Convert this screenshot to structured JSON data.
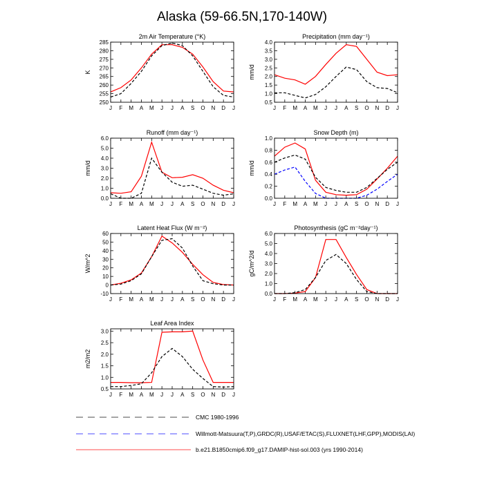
{
  "main_title": "Alaska (59-66.5N,170-140W)",
  "months": [
    "J",
    "F",
    "M",
    "A",
    "M",
    "J",
    "J",
    "A",
    "S",
    "O",
    "N",
    "D",
    "J"
  ],
  "legend": [
    {
      "label": "CMC 1980-1996",
      "color": "#000000",
      "dash": "dashed"
    },
    {
      "label": "Willmott-Matsuura(T,P),GRDC(R),USAF/ETAC(S),FLUXNET(LHF,GPP),MODIS(LAI)",
      "color": "#0000ff",
      "dash": "dashed"
    },
    {
      "label": "b.e21.B1850cmip6.f09_g17.DAMIP-hist-sol.003 (yrs 1990-2014)",
      "color": "#ff0000",
      "dash": "solid"
    }
  ],
  "chart_data": [
    {
      "type": "line",
      "title": "2m Air Temperature (°K)",
      "ylabel": "K",
      "ylim": [
        250,
        285
      ],
      "yticks": [
        "250",
        "255",
        "260",
        "265",
        "270",
        "275",
        "280",
        "285"
      ],
      "x": [
        "J",
        "F",
        "M",
        "A",
        "M",
        "J",
        "J",
        "A",
        "S",
        "O",
        "N",
        "D",
        "J"
      ],
      "series": [
        {
          "color": "#ff0000",
          "style": "solid",
          "values": [
            256,
            258.5,
            263,
            270,
            278,
            283.5,
            283.5,
            282,
            278,
            270.5,
            262,
            256.5,
            256
          ]
        },
        {
          "color": "#000000",
          "style": "dashed",
          "values": [
            253,
            255,
            261,
            268,
            277,
            283,
            284.5,
            283,
            277,
            268,
            259,
            254,
            253
          ]
        }
      ]
    },
    {
      "type": "line",
      "title": "Precipitation (mm day⁻¹)",
      "ylabel": "mm/d",
      "ylim": [
        0.5,
        4.0
      ],
      "yticks": [
        "0.5",
        "1.0",
        "1.5",
        "2.0",
        "2.5",
        "3.0",
        "3.5",
        "4.0"
      ],
      "x": [
        "J",
        "F",
        "M",
        "A",
        "M",
        "J",
        "J",
        "A",
        "S",
        "O",
        "N",
        "D",
        "J"
      ],
      "series": [
        {
          "color": "#ff0000",
          "style": "solid",
          "values": [
            2.1,
            1.9,
            1.8,
            1.55,
            2.0,
            2.7,
            3.35,
            3.85,
            3.75,
            3.0,
            2.25,
            2.05,
            2.1
          ]
        },
        {
          "color": "#000000",
          "style": "dashed",
          "values": [
            1.05,
            1.05,
            0.9,
            0.75,
            0.95,
            1.4,
            2.0,
            2.55,
            2.4,
            1.7,
            1.35,
            1.3,
            1.05
          ]
        }
      ]
    },
    {
      "type": "line",
      "title": "Runoff (mm day⁻¹)",
      "ylabel": "mm/d",
      "ylim": [
        0,
        6.0
      ],
      "yticks": [
        "0.0",
        "1.0",
        "2.0",
        "3.0",
        "4.0",
        "5.0",
        "6.0"
      ],
      "x": [
        "J",
        "F",
        "M",
        "A",
        "M",
        "J",
        "J",
        "A",
        "S",
        "O",
        "N",
        "D",
        "J"
      ],
      "series": [
        {
          "color": "#ff0000",
          "style": "solid",
          "values": [
            0.55,
            0.5,
            0.65,
            2.2,
            5.6,
            2.6,
            2.05,
            2.1,
            2.35,
            2.0,
            1.3,
            0.8,
            0.55
          ]
        },
        {
          "color": "#000000",
          "style": "dashed",
          "values": [
            0.45,
            0.0,
            0.0,
            0.5,
            4.0,
            2.6,
            1.6,
            1.2,
            1.3,
            0.9,
            0.5,
            0.3,
            0.45
          ]
        }
      ]
    },
    {
      "type": "line",
      "title": "Snow Depth (m)",
      "ylabel": "mm/d",
      "ylim": [
        0,
        1.0
      ],
      "yticks": [
        "0.0",
        "0.2",
        "0.4",
        "0.6",
        "0.8",
        "1.0"
      ],
      "x": [
        "J",
        "F",
        "M",
        "A",
        "M",
        "J",
        "J",
        "A",
        "S",
        "O",
        "N",
        "D",
        "J"
      ],
      "series": [
        {
          "color": "#ff0000",
          "style": "solid",
          "values": [
            0.7,
            0.85,
            0.92,
            0.82,
            0.3,
            0.1,
            0.06,
            0.05,
            0.06,
            0.15,
            0.32,
            0.5,
            0.7
          ]
        },
        {
          "color": "#000000",
          "style": "dashed",
          "values": [
            0.6,
            0.67,
            0.72,
            0.65,
            0.35,
            0.18,
            0.13,
            0.1,
            0.1,
            0.18,
            0.33,
            0.48,
            0.6
          ]
        },
        {
          "color": "#0000ff",
          "style": "dashed",
          "values": [
            0.4,
            0.47,
            0.52,
            0.28,
            0.08,
            0.0,
            0.0,
            0.0,
            0.0,
            0.05,
            0.15,
            0.28,
            0.4
          ]
        }
      ]
    },
    {
      "type": "line",
      "title": "Latent Heat Flux (W m⁻²)",
      "ylabel": "W/m^2",
      "ylim": [
        -10,
        60
      ],
      "yticks": [
        "-10",
        "0",
        "10",
        "20",
        "30",
        "40",
        "50",
        "60"
      ],
      "x": [
        "J",
        "F",
        "M",
        "A",
        "M",
        "J",
        "J",
        "A",
        "S",
        "O",
        "N",
        "D",
        "J"
      ],
      "series": [
        {
          "color": "#ff0000",
          "style": "solid",
          "values": [
            0,
            2,
            6,
            14,
            33,
            57,
            49,
            38,
            24,
            12,
            3,
            0.5,
            0
          ]
        },
        {
          "color": "#000000",
          "style": "dashed",
          "values": [
            0,
            1,
            5,
            13,
            33,
            52,
            54,
            43,
            22,
            5,
            1.5,
            0,
            0
          ]
        }
      ]
    },
    {
      "type": "line",
      "title": "Photosynthesis (gC m⁻²day⁻¹)",
      "ylabel": "gC/m^2/d",
      "ylim": [
        0,
        6.0
      ],
      "yticks": [
        "0.0",
        "1.0",
        "2.0",
        "3.0",
        "4.0",
        "5.0",
        "6.0"
      ],
      "x": [
        "J",
        "F",
        "M",
        "A",
        "M",
        "J",
        "J",
        "A",
        "S",
        "O",
        "N",
        "D",
        "J"
      ],
      "series": [
        {
          "color": "#ff0000",
          "style": "solid",
          "values": [
            0,
            0,
            0.05,
            0.2,
            1.6,
            5.4,
            5.4,
            3.6,
            1.9,
            0.4,
            0,
            0,
            0
          ]
        },
        {
          "color": "#000000",
          "style": "dashed",
          "values": [
            0,
            0,
            0.1,
            0.4,
            1.6,
            3.3,
            3.9,
            3.0,
            1.4,
            0.2,
            0,
            0,
            0
          ]
        }
      ]
    },
    {
      "type": "line",
      "title": "Leaf Area Index",
      "ylabel": "m2/m2",
      "ylim": [
        0.5,
        3.1
      ],
      "yticks": [
        "0.5",
        "1.0",
        "1.5",
        "2.0",
        "2.5",
        "3.0"
      ],
      "x": [
        "J",
        "F",
        "M",
        "A",
        "M",
        "J",
        "J",
        "A",
        "S",
        "O",
        "N",
        "D",
        "J"
      ],
      "series": [
        {
          "color": "#ff0000",
          "style": "solid",
          "values": [
            0.78,
            0.78,
            0.77,
            0.77,
            0.78,
            2.95,
            2.97,
            2.97,
            3.0,
            1.75,
            0.78,
            0.78,
            0.78
          ]
        },
        {
          "color": "#000000",
          "style": "dashed",
          "values": [
            0.6,
            0.6,
            0.65,
            0.72,
            1.2,
            1.9,
            2.25,
            1.9,
            1.35,
            0.95,
            0.6,
            0.58,
            0.6
          ]
        }
      ]
    }
  ]
}
